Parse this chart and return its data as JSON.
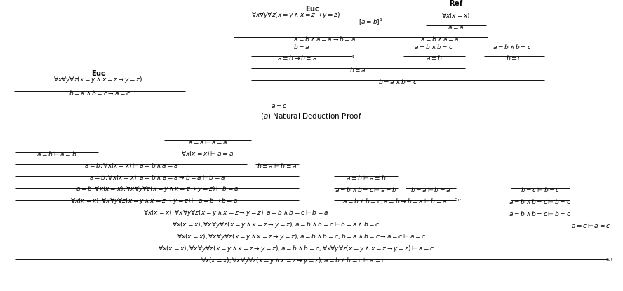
{
  "bg": "#ffffff",
  "fs": 6.5,
  "fs_bold": 7.0,
  "fs_caption": 7.5,
  "fs_cut": 5.5
}
